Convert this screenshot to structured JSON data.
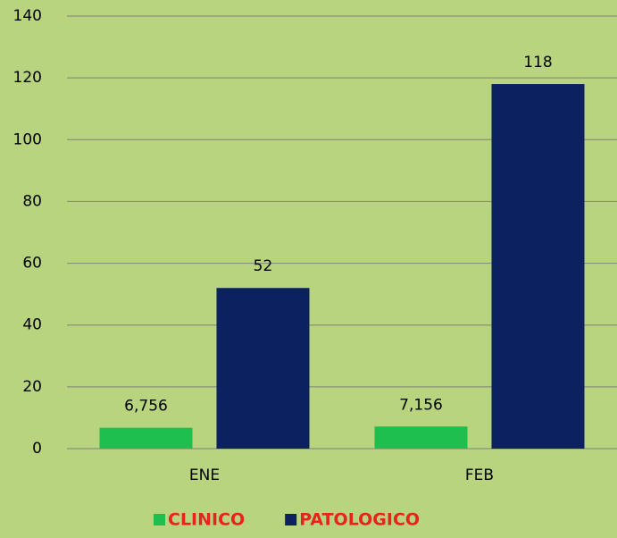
{
  "chart_data": {
    "type": "bar",
    "categories": [
      "ENE",
      "FEB"
    ],
    "series": [
      {
        "name": "CLINICO",
        "color": "#1fbf4f",
        "values": [
          6.756,
          7.156
        ],
        "value_labels": [
          "6,756",
          "7,156"
        ]
      },
      {
        "name": "PATOLOGICO",
        "color": "#0b2160",
        "values": [
          52,
          118
        ]
      }
    ],
    "ylim": [
      0,
      140
    ],
    "yticks": [
      0,
      20,
      40,
      60,
      80,
      100,
      120,
      140
    ],
    "grid": true,
    "legend": "bottom"
  }
}
